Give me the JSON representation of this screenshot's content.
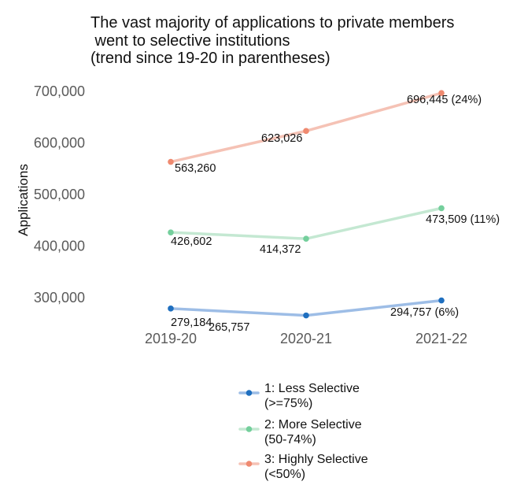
{
  "chart_data": {
    "type": "line",
    "title_lines": [
      "The vast majority of applications to private members",
      " went to selective institutions",
      "(trend since 19-20 in parentheses)"
    ],
    "xlabel": "",
    "ylabel": "Applications",
    "categories": [
      "2019-20",
      "2020-21",
      "2021-22"
    ],
    "y_ticks": [
      "300,000",
      "400,000",
      "500,000",
      "600,000",
      "700,000"
    ],
    "y_tick_values": [
      300000,
      400000,
      500000,
      600000,
      700000
    ],
    "ylim": [
      285000,
      712000
    ],
    "grid": false,
    "legend_position": "bottom",
    "series": [
      {
        "name_lines": [
          "1: Less Selective",
          "(>=75%)"
        ],
        "color": "#1f6fbf",
        "line_color": "#9dbde6",
        "values": [
          279184,
          265757,
          294757
        ],
        "labels": [
          "279,184",
          "265,757",
          "294,757 (6%)"
        ]
      },
      {
        "name_lines": [
          "2: More Selective",
          "(50-74%)"
        ],
        "color": "#74cf9c",
        "line_color": "#c4e8d2",
        "values": [
          426602,
          414372,
          473509
        ],
        "labels": [
          "426,602",
          "414,372",
          "473,509 (11%)"
        ]
      },
      {
        "name_lines": [
          "3: Highly Selective",
          "(<50%)"
        ],
        "color": "#ef8a70",
        "line_color": "#f5c2b5",
        "values": [
          563260,
          623026,
          696445
        ],
        "labels": [
          "563,260",
          "623,026",
          "696,445 (24%)"
        ]
      }
    ]
  }
}
